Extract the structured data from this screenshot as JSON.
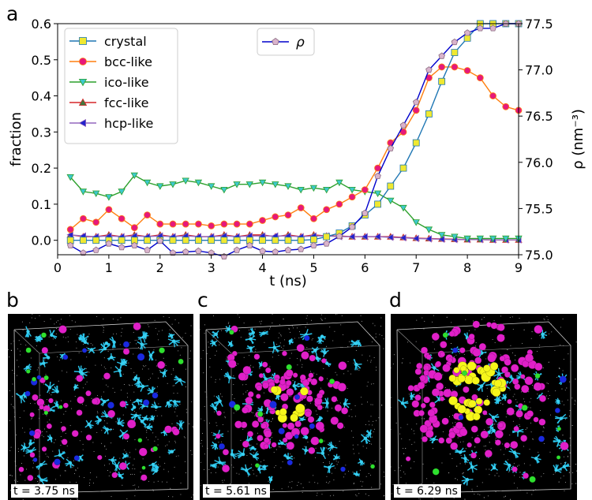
{
  "chart_data": {
    "type": "line",
    "panel_label": "a",
    "xlabel": "t (ns)",
    "x_ticks": [
      0,
      1,
      2,
      3,
      4,
      5,
      6,
      7,
      8,
      9
    ],
    "xlim": [
      0,
      9
    ],
    "y_left": {
      "label": "fraction",
      "ylim": [
        -0.04,
        0.6
      ],
      "ticks": [
        "0.0",
        "0.1",
        "0.2",
        "0.3",
        "0.4",
        "0.5",
        "0.6"
      ]
    },
    "y_right": {
      "label": "ρ (nm⁻³)",
      "ylim": [
        75.0,
        77.5
      ],
      "ticks": [
        "75.0",
        "75.5",
        "76.0",
        "76.5",
        "77.0",
        "77.5"
      ]
    },
    "legend_left": [
      "crystal",
      "bcc-like",
      "ico-like",
      "fcc-like",
      "hcp-like"
    ],
    "legend_right": [
      "ρ"
    ],
    "series": [
      {
        "name": "crystal",
        "axis": "left",
        "color": "#1f77b4",
        "marker": "square",
        "marker_color": "#f0e830",
        "x": [
          0.25,
          0.5,
          0.75,
          1.0,
          1.25,
          1.5,
          1.75,
          2.0,
          2.25,
          2.5,
          2.75,
          3.0,
          3.25,
          3.5,
          3.75,
          4.0,
          4.25,
          4.5,
          4.75,
          5.0,
          5.25,
          5.5,
          5.75,
          6.0,
          6.25,
          6.5,
          6.75,
          7.0,
          7.25,
          7.5,
          7.75,
          8.0,
          8.25,
          8.5,
          8.75,
          9.0
        ],
        "y": [
          0.0,
          0.0,
          0.0,
          0.0,
          0.0,
          0.0,
          0.0,
          0.0,
          0.0,
          0.0,
          0.0,
          0.0,
          0.0,
          0.0,
          0.0,
          0.0,
          0.0,
          0.0,
          0.0,
          0.002,
          0.01,
          0.02,
          0.04,
          0.07,
          0.1,
          0.15,
          0.2,
          0.27,
          0.35,
          0.44,
          0.52,
          0.56,
          0.6,
          0.6,
          0.6,
          0.6
        ]
      },
      {
        "name": "bcc-like",
        "axis": "left",
        "color": "#ff7f0e",
        "marker": "circle",
        "marker_color": "#e6197a",
        "x": [
          0.25,
          0.5,
          0.75,
          1.0,
          1.25,
          1.5,
          1.75,
          2.0,
          2.25,
          2.5,
          2.75,
          3.0,
          3.25,
          3.5,
          3.75,
          4.0,
          4.25,
          4.5,
          4.75,
          5.0,
          5.25,
          5.5,
          5.75,
          6.0,
          6.25,
          6.5,
          6.75,
          7.0,
          7.25,
          7.5,
          7.75,
          8.0,
          8.25,
          8.5,
          8.75,
          9.0
        ],
        "y": [
          0.03,
          0.06,
          0.05,
          0.085,
          0.06,
          0.035,
          0.07,
          0.045,
          0.045,
          0.045,
          0.045,
          0.04,
          0.045,
          0.045,
          0.045,
          0.055,
          0.065,
          0.07,
          0.09,
          0.06,
          0.085,
          0.1,
          0.12,
          0.14,
          0.2,
          0.27,
          0.3,
          0.36,
          0.45,
          0.48,
          0.48,
          0.47,
          0.45,
          0.4,
          0.37,
          0.36
        ]
      },
      {
        "name": "ico-like",
        "axis": "left",
        "color": "#2ca02c",
        "marker": "triangle-down",
        "marker_color": "#3ec8cc",
        "x": [
          0.25,
          0.5,
          0.75,
          1.0,
          1.25,
          1.5,
          1.75,
          2.0,
          2.25,
          2.5,
          2.75,
          3.0,
          3.25,
          3.5,
          3.75,
          4.0,
          4.25,
          4.5,
          4.75,
          5.0,
          5.25,
          5.5,
          5.75,
          6.0,
          6.25,
          6.5,
          6.75,
          7.0,
          7.25,
          7.5,
          7.75,
          8.0,
          8.25,
          8.5,
          8.75,
          9.0
        ],
        "y": [
          0.175,
          0.135,
          0.13,
          0.12,
          0.135,
          0.18,
          0.16,
          0.15,
          0.155,
          0.165,
          0.16,
          0.15,
          0.14,
          0.155,
          0.155,
          0.16,
          0.155,
          0.15,
          0.14,
          0.145,
          0.14,
          0.16,
          0.14,
          0.135,
          0.13,
          0.11,
          0.09,
          0.05,
          0.03,
          0.015,
          0.01,
          0.005,
          0.005,
          0.005,
          0.005,
          0.005
        ]
      },
      {
        "name": "fcc-like",
        "axis": "left",
        "color": "#d62728",
        "marker": "triangle-up",
        "marker_color": "#3f7a3f",
        "x": [
          0.25,
          0.5,
          0.75,
          1.0,
          1.25,
          1.5,
          1.75,
          2.0,
          2.25,
          2.5,
          2.75,
          3.0,
          3.25,
          3.5,
          3.75,
          4.0,
          4.25,
          4.5,
          4.75,
          5.0,
          5.25,
          5.5,
          5.75,
          6.0,
          6.25,
          6.5,
          6.75,
          7.0,
          7.25,
          7.5,
          7.75,
          8.0,
          8.25,
          8.5,
          8.75,
          9.0
        ],
        "y": [
          0.015,
          0.01,
          0.01,
          0.015,
          0.01,
          0.015,
          0.01,
          0.015,
          0.01,
          0.015,
          0.01,
          0.01,
          0.015,
          0.01,
          0.015,
          0.015,
          0.01,
          0.015,
          0.01,
          0.015,
          0.012,
          0.012,
          0.01,
          0.01,
          0.01,
          0.01,
          0.008,
          0.006,
          0.005,
          0.004,
          0.003,
          0.002,
          0.002,
          0.001,
          0.001,
          0.001
        ]
      },
      {
        "name": "hcp-like",
        "axis": "left",
        "color": "#9467bd",
        "marker": "triangle-left",
        "marker_color": "#2222cc",
        "x": [
          0.25,
          0.5,
          0.75,
          1.0,
          1.25,
          1.5,
          1.75,
          2.0,
          2.25,
          2.5,
          2.75,
          3.0,
          3.25,
          3.5,
          3.75,
          4.0,
          4.25,
          4.5,
          4.75,
          5.0,
          5.25,
          5.5,
          5.75,
          6.0,
          6.25,
          6.5,
          6.75,
          7.0,
          7.25,
          7.5,
          7.75,
          8.0,
          8.25,
          8.5,
          8.75,
          9.0
        ],
        "y": [
          0.015,
          0.012,
          0.01,
          0.012,
          0.01,
          0.012,
          0.01,
          0.012,
          0.01,
          0.012,
          0.01,
          0.01,
          0.012,
          0.01,
          0.012,
          0.012,
          0.012,
          0.012,
          0.01,
          0.012,
          0.012,
          0.01,
          0.01,
          0.01,
          0.01,
          0.008,
          0.007,
          0.005,
          0.004,
          0.003,
          0.002,
          0.002,
          0.002,
          0.001,
          0.001,
          0.001
        ]
      },
      {
        "name": "ρ",
        "axis": "right",
        "color": "#0000cc",
        "marker": "pentagon",
        "marker_color": "#d9b3cc",
        "x": [
          0.25,
          0.5,
          0.75,
          1.0,
          1.25,
          1.5,
          1.75,
          2.0,
          2.25,
          2.5,
          2.75,
          3.0,
          3.25,
          3.5,
          3.75,
          4.0,
          4.25,
          4.5,
          4.75,
          5.0,
          5.25,
          5.5,
          5.75,
          6.0,
          6.25,
          6.5,
          6.75,
          7.0,
          7.25,
          7.5,
          7.75,
          8.0,
          8.25,
          8.5,
          8.75,
          9.0
        ],
        "y": [
          75.1,
          75.02,
          75.05,
          75.12,
          75.08,
          75.1,
          75.05,
          75.15,
          75.02,
          75.03,
          75.04,
          75.02,
          74.98,
          75.05,
          75.1,
          75.04,
          75.03,
          75.05,
          75.06,
          75.1,
          75.12,
          75.2,
          75.3,
          75.45,
          75.85,
          76.15,
          76.4,
          76.65,
          77.0,
          77.15,
          77.3,
          77.4,
          77.45,
          77.45,
          77.5,
          77.5
        ]
      }
    ]
  },
  "snapshots": [
    {
      "label": "b",
      "time": "t = 3.75 ns"
    },
    {
      "label": "c",
      "time": "t = 5.61 ns"
    },
    {
      "label": "d",
      "time": "t = 6.29 ns"
    }
  ]
}
